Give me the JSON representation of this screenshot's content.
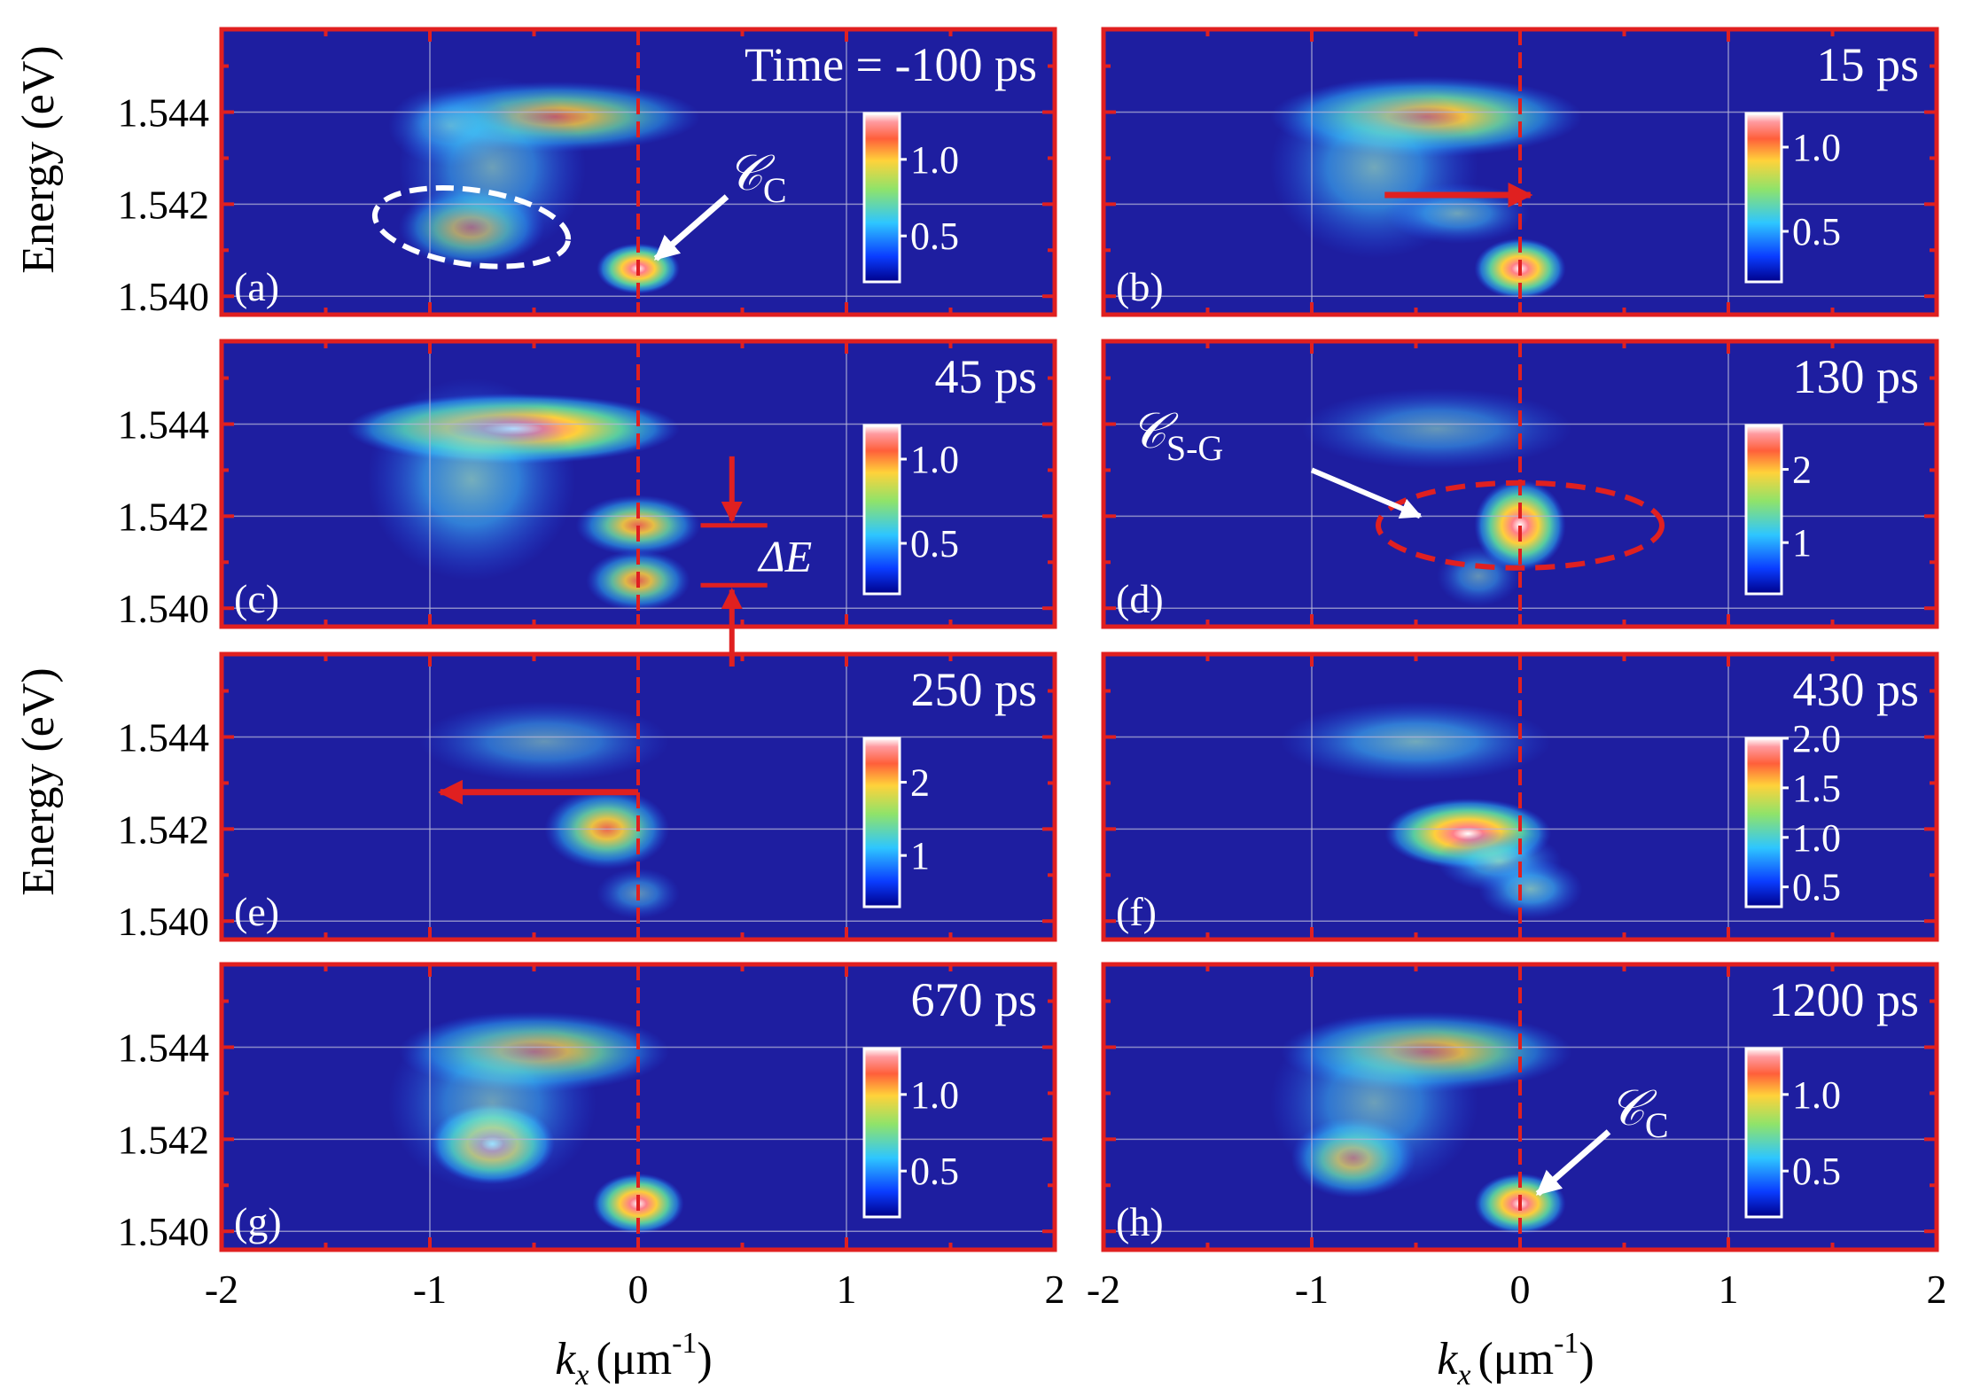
{
  "figure": {
    "ylabel_top": "Energy (eV)",
    "ylabel_bottom": "Energy (eV)",
    "xlabel_var": "k",
    "xlabel_sub": "x",
    "xlabel_unit": "(μm",
    "xlabel_exp": "-1",
    "xlabel_close": ")"
  },
  "colors": {
    "background": "#1e1ea0",
    "frame": "#e02020",
    "dashed_marker": "#e02020",
    "arrow_red": "#e02020",
    "annotation_white": "#ffffff"
  },
  "chart_data": {
    "type": "heatmap",
    "description": "Momentum-resolved energy maps at different time delays",
    "x_ticks": [
      "-2",
      "-1",
      "0",
      "1",
      "2"
    ],
    "y_ticks": [
      "1.540",
      "1.542",
      "1.544"
    ],
    "xlim": [
      -2,
      2
    ],
    "ylim": [
      1.5396,
      1.5458
    ],
    "x_tick_values": [
      -2,
      -1,
      0,
      1,
      2
    ],
    "y_tick_values": [
      1.54,
      1.542,
      1.544
    ],
    "colormap": "rainbow",
    "panels": [
      {
        "id": "a",
        "label": "(a)",
        "time": "Time = -100 ps",
        "colorbar": {
          "min": 0.2,
          "max": 1.3,
          "ticks": [
            0.5,
            1.0
          ],
          "tick_labels": [
            "0.5",
            "1.0"
          ]
        },
        "blobs": [
          {
            "kx": -0.4,
            "E": 1.5439,
            "sx": 0.7,
            "sy": 0.00035,
            "v": 0.65
          },
          {
            "kx": -0.9,
            "E": 1.5437,
            "sx": 0.3,
            "sy": 0.0004,
            "v": 0.35
          },
          {
            "kx": -0.8,
            "E": 1.5415,
            "sx": 0.35,
            "sy": 0.0004,
            "v": 0.6
          },
          {
            "kx": -0.7,
            "E": 1.5428,
            "sx": 0.45,
            "sy": 0.0009,
            "v": 0.3
          },
          {
            "kx": 0.0,
            "E": 1.5406,
            "sx": 0.2,
            "sy": 0.00025,
            "v": 1.05
          }
        ],
        "annotations": [
          {
            "text": "𝒞",
            "sub": "C",
            "kind": "white-arrow"
          }
        ]
      },
      {
        "id": "b",
        "label": "(b)",
        "time": "15 ps",
        "colorbar": {
          "min": 0.2,
          "max": 1.2,
          "ticks": [
            0.5,
            1.0
          ],
          "tick_labels": [
            "0.5",
            "1.0"
          ]
        },
        "blobs": [
          {
            "kx": -0.45,
            "E": 1.5439,
            "sx": 0.75,
            "sy": 0.0004,
            "v": 0.8
          },
          {
            "kx": -0.7,
            "E": 1.5428,
            "sx": 0.5,
            "sy": 0.0009,
            "v": 0.35
          },
          {
            "kx": -0.3,
            "E": 1.5418,
            "sx": 0.35,
            "sy": 0.0003,
            "v": 0.3
          },
          {
            "kx": 0.0,
            "E": 1.5406,
            "sx": 0.22,
            "sy": 0.0003,
            "v": 0.95
          }
        ],
        "annotations": [
          {
            "kind": "red-arrow-right"
          }
        ]
      },
      {
        "id": "c",
        "label": "(c)",
        "time": "45 ps",
        "colorbar": {
          "min": 0.2,
          "max": 1.2,
          "ticks": [
            0.5,
            1.0
          ],
          "tick_labels": [
            "0.5",
            "1.0"
          ]
        },
        "blobs": [
          {
            "kx": -0.6,
            "E": 1.5439,
            "sx": 0.8,
            "sy": 0.00035,
            "v": 1.0
          },
          {
            "kx": -0.8,
            "E": 1.5428,
            "sx": 0.5,
            "sy": 0.001,
            "v": 0.4
          },
          {
            "kx": 0.0,
            "E": 1.5418,
            "sx": 0.3,
            "sy": 0.0003,
            "v": 0.75
          },
          {
            "kx": 0.0,
            "E": 1.5406,
            "sx": 0.25,
            "sy": 0.0003,
            "v": 0.7
          }
        ],
        "annotations": [
          {
            "text": "ΔE",
            "kind": "energy-gap"
          }
        ]
      },
      {
        "id": "d",
        "label": "(d)",
        "time": "130 ps",
        "colorbar": {
          "min": 0.3,
          "max": 2.6,
          "ticks": [
            1,
            2
          ],
          "tick_labels": [
            "1",
            "2"
          ]
        },
        "blobs": [
          {
            "kx": -0.4,
            "E": 1.5439,
            "sx": 0.65,
            "sy": 0.0004,
            "v": 0.45
          },
          {
            "kx": 0.0,
            "E": 1.5418,
            "sx": 0.22,
            "sy": 0.00045,
            "v": 2.2
          },
          {
            "kx": -0.2,
            "E": 1.5407,
            "sx": 0.2,
            "sy": 0.0003,
            "v": 0.35
          }
        ],
        "annotations": [
          {
            "text": "𝒞",
            "sub": "S-G",
            "kind": "white-arrow-dashed-ellipse"
          }
        ]
      },
      {
        "id": "e",
        "label": "(e)",
        "time": "250 ps",
        "colorbar": {
          "min": 0.3,
          "max": 2.6,
          "ticks": [
            1,
            2
          ],
          "tick_labels": [
            "1",
            "2"
          ]
        },
        "blobs": [
          {
            "kx": -0.45,
            "E": 1.5439,
            "sx": 0.6,
            "sy": 0.0004,
            "v": 0.4
          },
          {
            "kx": -0.15,
            "E": 1.542,
            "sx": 0.3,
            "sy": 0.0004,
            "v": 1.7
          },
          {
            "kx": 0.0,
            "E": 1.5406,
            "sx": 0.2,
            "sy": 0.00025,
            "v": 0.35
          }
        ],
        "annotations": [
          {
            "kind": "red-arrow-left"
          }
        ]
      },
      {
        "id": "f",
        "label": "(f)",
        "time": "430 ps",
        "colorbar": {
          "min": 0.3,
          "max": 2.0,
          "ticks": [
            0.5,
            1.0,
            1.5,
            2.0
          ],
          "tick_labels": [
            "0.5",
            "1.0",
            "1.5",
            "2.0"
          ]
        },
        "blobs": [
          {
            "kx": -0.5,
            "E": 1.5439,
            "sx": 0.65,
            "sy": 0.0004,
            "v": 0.6
          },
          {
            "kx": -0.25,
            "E": 1.5419,
            "sx": 0.4,
            "sy": 0.00035,
            "v": 1.7
          },
          {
            "kx": -0.1,
            "E": 1.5413,
            "sx": 0.3,
            "sy": 0.0003,
            "v": 0.8
          },
          {
            "kx": 0.05,
            "E": 1.5407,
            "sx": 0.25,
            "sy": 0.0003,
            "v": 0.75
          }
        ],
        "annotations": []
      },
      {
        "id": "g",
        "label": "(g)",
        "time": "670 ps",
        "colorbar": {
          "min": 0.2,
          "max": 1.3,
          "ticks": [
            0.5,
            1.0
          ],
          "tick_labels": [
            "0.5",
            "1.0"
          ]
        },
        "blobs": [
          {
            "kx": -0.5,
            "E": 1.5439,
            "sx": 0.65,
            "sy": 0.0004,
            "v": 0.7
          },
          {
            "kx": -0.7,
            "E": 1.5419,
            "sx": 0.3,
            "sy": 0.0004,
            "v": 1.05
          },
          {
            "kx": -0.7,
            "E": 1.5428,
            "sx": 0.5,
            "sy": 0.0009,
            "v": 0.3
          },
          {
            "kx": 0.0,
            "E": 1.5406,
            "sx": 0.22,
            "sy": 0.0003,
            "v": 1.0
          }
        ],
        "annotations": []
      },
      {
        "id": "h",
        "label": "(h)",
        "time": "1200 ps",
        "colorbar": {
          "min": 0.2,
          "max": 1.3,
          "ticks": [
            0.5,
            1.0
          ],
          "tick_labels": [
            "0.5",
            "1.0"
          ]
        },
        "blobs": [
          {
            "kx": -0.45,
            "E": 1.5439,
            "sx": 0.7,
            "sy": 0.0004,
            "v": 0.7
          },
          {
            "kx": -0.8,
            "E": 1.5416,
            "sx": 0.3,
            "sy": 0.0004,
            "v": 0.85
          },
          {
            "kx": -0.7,
            "E": 1.5428,
            "sx": 0.5,
            "sy": 0.0009,
            "v": 0.3
          },
          {
            "kx": 0.0,
            "E": 1.5406,
            "sx": 0.22,
            "sy": 0.0003,
            "v": 1.0
          }
        ],
        "annotations": [
          {
            "text": "𝒞",
            "sub": "C",
            "kind": "white-arrow"
          }
        ]
      }
    ]
  }
}
